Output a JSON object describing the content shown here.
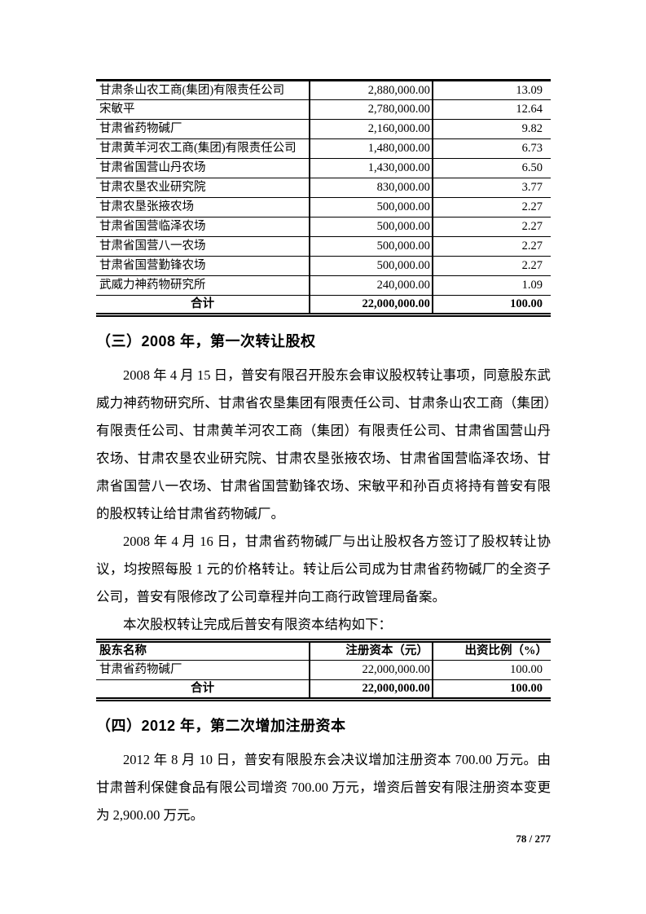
{
  "page": {
    "footer": "78 / 277"
  },
  "table1": {
    "rows": [
      {
        "name": "甘肃条山农工商(集团)有限责任公司",
        "capital": "2,880,000.00",
        "ratio": "13.09"
      },
      {
        "name": "宋敏平",
        "capital": "2,780,000.00",
        "ratio": "12.64"
      },
      {
        "name": "甘肃省药物碱厂",
        "capital": "2,160,000.00",
        "ratio": "9.82"
      },
      {
        "name": "甘肃黄羊河农工商(集团)有限责任公司",
        "capital": "1,480,000.00",
        "ratio": "6.73"
      },
      {
        "name": "甘肃省国营山丹农场",
        "capital": "1,430,000.00",
        "ratio": "6.50"
      },
      {
        "name": "甘肃农垦农业研究院",
        "capital": "830,000.00",
        "ratio": "3.77"
      },
      {
        "name": "甘肃农垦张掖农场",
        "capital": "500,000.00",
        "ratio": "2.27"
      },
      {
        "name": "甘肃省国营临泽农场",
        "capital": "500,000.00",
        "ratio": "2.27"
      },
      {
        "name": "甘肃省国营八一农场",
        "capital": "500,000.00",
        "ratio": "2.27"
      },
      {
        "name": "甘肃省国营勤锋农场",
        "capital": "500,000.00",
        "ratio": "2.27"
      },
      {
        "name": "武威力神药物研究所",
        "capital": "240,000.00",
        "ratio": "1.09"
      }
    ],
    "total": {
      "label": "合计",
      "capital": "22,000,000.00",
      "ratio": "100.00"
    }
  },
  "section3": {
    "heading": "（三）2008 年，第一次转让股权",
    "para1": "2008 年 4 月 15 日，普安有限召开股东会审议股权转让事项，同意股东武威力神药物研究所、甘肃省农垦集团有限责任公司、甘肃条山农工商（集团）有限责任公司、甘肃黄羊河农工商（集团）有限责任公司、甘肃省国营山丹农场、甘肃农垦农业研究院、甘肃农垦张掖农场、甘肃省国营临泽农场、甘肃省国营八一农场、甘肃省国营勤锋农场、宋敏平和孙百贞将持有普安有限的股权转让给甘肃省药物碱厂。",
    "para2": "2008 年 4 月 16 日，甘肃省药物碱厂与出让股权各方签订了股权转让协议，均按照每股 1 元的价格转让。转让后公司成为甘肃省药物碱厂的全资子公司，普安有限修改了公司章程并向工商行政管理局备案。",
    "para3": "本次股权转让完成后普安有限资本结构如下："
  },
  "table2": {
    "headers": [
      "股东名称",
      "注册资本（元）",
      "出资比例（%）"
    ],
    "rows": [
      {
        "name": "甘肃省药物碱厂",
        "capital": "22,000,000.00",
        "ratio": "100.00"
      }
    ],
    "total": {
      "label": "合计",
      "capital": "22,000,000.00",
      "ratio": "100.00"
    }
  },
  "section4": {
    "heading": "（四）2012 年，第二次增加注册资本",
    "para1": "2012 年 8 月 10 日，普安有限股东会决议增加注册资本 700.00 万元。由甘肃普利保健食品有限公司增资 700.00 万元，增资后普安有限注册资本变更为 2,900.00 万元。"
  }
}
